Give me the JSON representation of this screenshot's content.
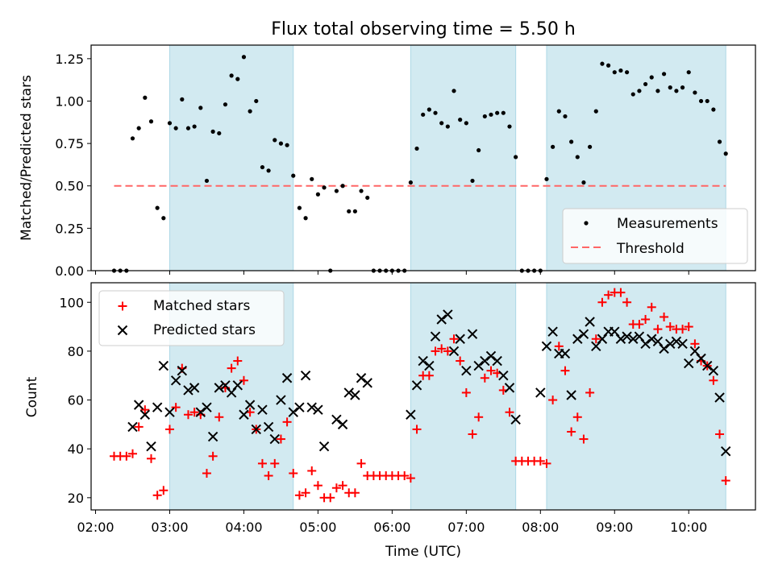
{
  "title": "Flux total observing time = 5.50 h",
  "colors": {
    "shade": "#add8e6",
    "measure": "#000000",
    "threshold": "#ff6666",
    "matched": "#ff0000",
    "predicted": "#000000"
  },
  "chart_data": [
    {
      "type": "scatter",
      "ylabel": "Matched/Predicted stars",
      "ylim": [
        0,
        1.33
      ],
      "yticks": [
        0.0,
        0.25,
        0.5,
        0.75,
        1.0,
        1.25
      ],
      "ytick_labels": [
        "0.00",
        "0.25",
        "0.50",
        "0.75",
        "1.00",
        "1.25"
      ],
      "xlim_hours": [
        1.94,
        10.9
      ],
      "legend": {
        "position": "lower-right",
        "entries": [
          "Measurements",
          "Threshold"
        ]
      },
      "threshold": {
        "name": "Threshold",
        "value": 0.5,
        "x_start": "02:15",
        "x_end": "10:30"
      },
      "observing_windows": [
        [
          "03:00",
          "04:40"
        ],
        [
          "06:15",
          "07:40"
        ],
        [
          "08:05",
          "10:30"
        ]
      ],
      "series": [
        {
          "name": "Measurements",
          "x": [
            "02:15",
            "02:20",
            "02:25",
            "02:30",
            "02:35",
            "02:40",
            "02:45",
            "02:50",
            "02:55",
            "03:00",
            "03:05",
            "03:10",
            "03:15",
            "03:20",
            "03:25",
            "03:30",
            "03:35",
            "03:40",
            "03:45",
            "03:50",
            "03:55",
            "04:00",
            "04:05",
            "04:10",
            "04:15",
            "04:20",
            "04:25",
            "04:30",
            "04:35",
            "04:40",
            "04:45",
            "04:50",
            "04:55",
            "05:00",
            "05:05",
            "05:10",
            "05:15",
            "05:20",
            "05:25",
            "05:30",
            "05:35",
            "05:40",
            "05:45",
            "05:50",
            "05:55",
            "06:00",
            "06:05",
            "06:10",
            "06:15",
            "06:20",
            "06:25",
            "06:30",
            "06:35",
            "06:40",
            "06:45",
            "06:50",
            "06:55",
            "07:00",
            "07:05",
            "07:10",
            "07:15",
            "07:20",
            "07:25",
            "07:30",
            "07:35",
            "07:40",
            "07:45",
            "07:50",
            "07:55",
            "08:00",
            "08:05",
            "08:10",
            "08:15",
            "08:20",
            "08:25",
            "08:30",
            "08:35",
            "08:40",
            "08:45",
            "08:50",
            "08:55",
            "09:00",
            "09:05",
            "09:10",
            "09:15",
            "09:20",
            "09:25",
            "09:30",
            "09:35",
            "09:40",
            "09:45",
            "09:50",
            "09:55",
            "10:00",
            "10:05",
            "10:10",
            "10:15",
            "10:20",
            "10:25",
            "10:30"
          ],
          "y": [
            0,
            0,
            0,
            0.78,
            0.84,
            1.02,
            0.88,
            0.37,
            0.31,
            0.87,
            0.84,
            1.01,
            0.84,
            0.85,
            0.96,
            0.53,
            0.82,
            0.81,
            0.98,
            1.15,
            1.13,
            1.26,
            0.94,
            1.0,
            0.61,
            0.59,
            0.77,
            0.75,
            0.74,
            0.56,
            0.37,
            0.31,
            0.54,
            0.45,
            0.49,
            0,
            0.47,
            0.5,
            0.35,
            0.35,
            0.47,
            0.43,
            0,
            0,
            0,
            0,
            0,
            0,
            0.52,
            0.72,
            0.92,
            0.95,
            0.93,
            0.87,
            0.85,
            1.06,
            0.89,
            0.87,
            0.53,
            0.71,
            0.91,
            0.92,
            0.93,
            0.93,
            0.85,
            0.67,
            0,
            0,
            0,
            0,
            0.54,
            0.73,
            0.94,
            0.91,
            0.76,
            0.67,
            0.52,
            0.73,
            0.94,
            1.22,
            1.21,
            1.17,
            1.18,
            1.17,
            1.04,
            1.06,
            1.1,
            1.14,
            1.06,
            1.16,
            1.08,
            1.06,
            1.08,
            1.17,
            1.05,
            1.0,
            1.0,
            0.95,
            0.76,
            0.69
          ]
        }
      ]
    },
    {
      "type": "scatter",
      "xlabel": "Time (UTC)",
      "ylabel": "Count",
      "ylim": [
        15,
        108
      ],
      "yticks": [
        20,
        40,
        60,
        80,
        100
      ],
      "ytick_labels": [
        "20",
        "40",
        "60",
        "80",
        "100"
      ],
      "xlim_hours": [
        1.94,
        10.9
      ],
      "xticks": [
        "02:00",
        "03:00",
        "04:00",
        "05:00",
        "06:00",
        "07:00",
        "08:00",
        "09:00",
        "10:00"
      ],
      "legend": {
        "position": "upper-left",
        "entries": [
          "Matched stars",
          "Predicted stars"
        ]
      },
      "observing_windows": [
        [
          "03:00",
          "04:40"
        ],
        [
          "06:15",
          "07:40"
        ],
        [
          "08:05",
          "10:30"
        ]
      ],
      "series": [
        {
          "name": "Matched stars",
          "x": [
            "02:15",
            "02:20",
            "02:25",
            "02:30",
            "02:35",
            "02:40",
            "02:45",
            "02:50",
            "02:55",
            "03:00",
            "03:05",
            "03:10",
            "03:15",
            "03:20",
            "03:25",
            "03:30",
            "03:35",
            "03:40",
            "03:45",
            "03:50",
            "03:55",
            "04:00",
            "04:05",
            "04:10",
            "04:15",
            "04:20",
            "04:25",
            "04:30",
            "04:35",
            "04:40",
            "04:45",
            "04:50",
            "04:55",
            "05:00",
            "05:05",
            "05:10",
            "05:15",
            "05:20",
            "05:25",
            "05:30",
            "05:35",
            "05:40",
            "05:45",
            "05:50",
            "05:55",
            "06:00",
            "06:05",
            "06:10",
            "06:15",
            "06:20",
            "06:25",
            "06:30",
            "06:35",
            "06:40",
            "06:45",
            "06:50",
            "06:55",
            "07:00",
            "07:05",
            "07:10",
            "07:15",
            "07:20",
            "07:25",
            "07:30",
            "07:35",
            "07:40",
            "07:45",
            "07:50",
            "07:55",
            "08:00",
            "08:05",
            "08:10",
            "08:15",
            "08:20",
            "08:25",
            "08:30",
            "08:35",
            "08:40",
            "08:45",
            "08:50",
            "08:55",
            "09:00",
            "09:05",
            "09:10",
            "09:15",
            "09:20",
            "09:25",
            "09:30",
            "09:35",
            "09:40",
            "09:45",
            "09:50",
            "09:55",
            "10:00",
            "10:05",
            "10:10",
            "10:15",
            "10:20",
            "10:25",
            "10:30"
          ],
          "y": [
            37,
            37,
            37,
            38,
            49,
            56,
            36,
            21,
            23,
            48,
            57,
            73,
            54,
            55,
            54,
            30,
            37,
            53,
            65,
            73,
            76,
            68,
            55,
            48,
            34,
            29,
            34,
            44,
            51,
            30,
            21,
            22,
            31,
            25,
            20,
            20,
            24,
            25,
            22,
            22,
            34,
            29,
            29,
            29,
            29,
            29,
            29,
            29,
            28,
            48,
            70,
            70,
            80,
            81,
            80,
            85,
            76,
            63,
            46,
            53,
            69,
            72,
            71,
            64,
            55,
            35,
            35,
            35,
            35,
            35,
            34,
            60,
            82,
            72,
            47,
            53,
            44,
            63,
            85,
            100,
            103,
            104,
            104,
            100,
            91,
            91,
            93,
            98,
            89,
            94,
            90,
            89,
            89,
            90,
            83,
            76,
            74,
            68,
            46,
            27
          ]
        },
        {
          "name": "Predicted stars",
          "x": [
            "02:30",
            "02:35",
            "02:40",
            "02:45",
            "02:50",
            "02:55",
            "03:00",
            "03:05",
            "03:10",
            "03:15",
            "03:20",
            "03:25",
            "03:30",
            "03:35",
            "03:40",
            "03:45",
            "03:50",
            "03:55",
            "04:00",
            "04:05",
            "04:10",
            "04:15",
            "04:20",
            "04:25",
            "04:30",
            "04:35",
            "04:40",
            "04:45",
            "04:50",
            "04:55",
            "05:00",
            "05:05",
            "05:15",
            "05:20",
            "05:25",
            "05:30",
            "05:35",
            "05:40",
            "06:15",
            "06:20",
            "06:25",
            "06:30",
            "06:35",
            "06:40",
            "06:45",
            "06:50",
            "06:55",
            "07:00",
            "07:05",
            "07:10",
            "07:15",
            "07:20",
            "07:25",
            "07:30",
            "07:35",
            "07:40",
            "08:00",
            "08:05",
            "08:10",
            "08:15",
            "08:20",
            "08:25",
            "08:30",
            "08:35",
            "08:40",
            "08:45",
            "08:50",
            "08:55",
            "09:00",
            "09:05",
            "09:10",
            "09:15",
            "09:20",
            "09:25",
            "09:30",
            "09:35",
            "09:40",
            "09:45",
            "09:50",
            "09:55",
            "10:00",
            "10:05",
            "10:10",
            "10:15",
            "10:20",
            "10:25",
            "10:30"
          ],
          "y": [
            49,
            58,
            54,
            41,
            57,
            74,
            55,
            68,
            72,
            64,
            65,
            55,
            57,
            45,
            65,
            66,
            63,
            66,
            54,
            58,
            48,
            56,
            49,
            44,
            60,
            69,
            55,
            57,
            70,
            57,
            56,
            41,
            52,
            50,
            63,
            62,
            69,
            67,
            54,
            66,
            76,
            74,
            86,
            93,
            95,
            80,
            85,
            72,
            87,
            74,
            76,
            78,
            76,
            70,
            65,
            52,
            63,
            82,
            88,
            79,
            79,
            62,
            85,
            87,
            92,
            82,
            85,
            88,
            88,
            85,
            86,
            85,
            86,
            83,
            85,
            84,
            81,
            83,
            84,
            83,
            75,
            80,
            77,
            74,
            72,
            61,
            39
          ]
        }
      ]
    }
  ]
}
